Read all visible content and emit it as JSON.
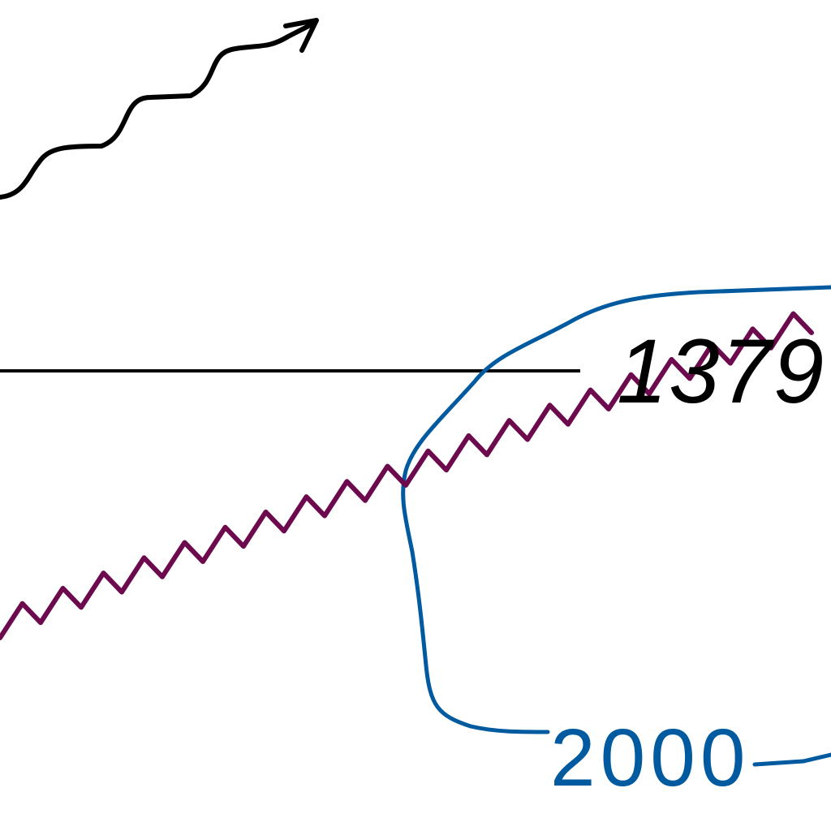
{
  "colors": {
    "background": "#ffffff",
    "arrow": "#000000",
    "reference_line": "#000000",
    "wavy_series": "#6d0a4e",
    "blue_curve": "#005aa0",
    "value_label": "#000000",
    "year_label": "#005aa0"
  },
  "labels": {
    "value": "1379",
    "year": "2000"
  }
}
